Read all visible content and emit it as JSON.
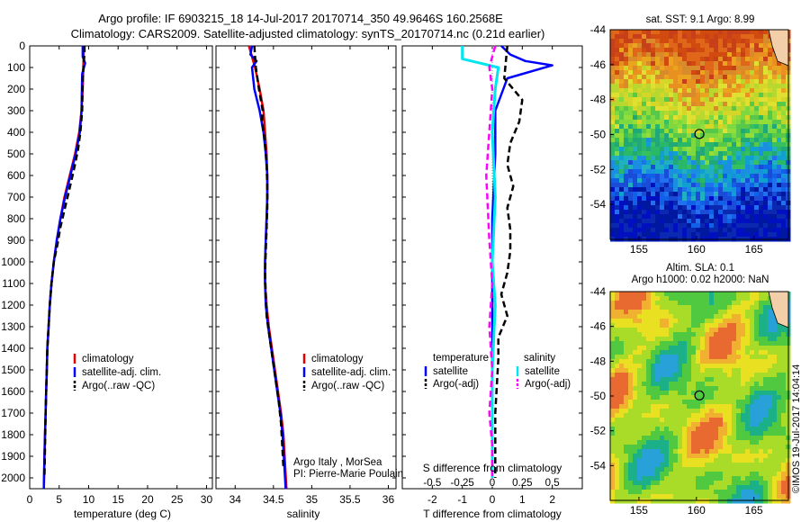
{
  "header": {
    "line1": "Argo profile: IF 6903215_18 14-Jul-2017 20170714_350 49.9646S 160.2568E",
    "line2": "Climatology: CARS2009. Satellite-adjusted climatology: synTS_20170714.nc (0.21d earlier)"
  },
  "colors": {
    "climatology": "#e00000",
    "satellite": "#0000ff",
    "argo": "#000000",
    "salinity_satellite": "#00e5ee",
    "salinity_argo": "#ff00ff"
  },
  "chart_data": [
    {
      "id": "temperature",
      "type": "line",
      "xlabel": "temperature (deg C)",
      "ylim": [
        2050,
        0
      ],
      "xlim": [
        0,
        31
      ],
      "xticks": [
        "0",
        "5",
        "10",
        "15",
        "20",
        "25",
        "30"
      ],
      "yticks": [
        "0",
        "100",
        "200",
        "300",
        "400",
        "500",
        "600",
        "700",
        "800",
        "900",
        "1000",
        "1100",
        "1200",
        "1300",
        "1400",
        "1500",
        "1600",
        "1700",
        "1800",
        "1900",
        "2000"
      ],
      "legend": [
        "climatology",
        "satellite-adj. clim.",
        "Argo(..raw -QC)"
      ],
      "series": [
        {
          "name": "climatology",
          "x": [
            9.2,
            9.1,
            9.0,
            8.8,
            8.4,
            7.7,
            6.8,
            5.9,
            5.2,
            4.6,
            4.1,
            3.7,
            3.4,
            3.2,
            3.0,
            2.9,
            2.8,
            2.7,
            2.6,
            2.5,
            2.4
          ],
          "y": [
            0,
            100,
            200,
            300,
            400,
            500,
            600,
            700,
            800,
            900,
            1000,
            1100,
            1200,
            1300,
            1400,
            1500,
            1600,
            1700,
            1800,
            1900,
            2050
          ]
        },
        {
          "name": "satellite-adj. clim.",
          "x": [
            9.0,
            9.0,
            9.4,
            8.9,
            8.8,
            8.5,
            7.8,
            6.9,
            6.0,
            5.2,
            4.6,
            4.1,
            3.7,
            3.4,
            3.2,
            3.0,
            2.9,
            2.8,
            2.7,
            2.6,
            2.5,
            2.4
          ],
          "y": [
            0,
            50,
            80,
            130,
            300,
            400,
            500,
            600,
            700,
            800,
            900,
            1000,
            1100,
            1200,
            1300,
            1400,
            1500,
            1600,
            1700,
            1800,
            1900,
            2050
          ]
        },
        {
          "name": "Argo(..raw -QC)",
          "x": [
            9.3,
            9.3,
            9.0,
            8.9,
            8.6,
            8.2,
            7.6,
            6.6,
            5.9,
            5.2,
            4.7,
            4.1,
            3.7,
            3.4,
            3.2,
            3.0,
            2.9,
            2.8,
            2.7,
            2.5
          ],
          "y": [
            0,
            30,
            150,
            300,
            400,
            480,
            560,
            680,
            760,
            840,
            920,
            1000,
            1100,
            1200,
            1300,
            1400,
            1500,
            1600,
            1700,
            2000
          ]
        }
      ]
    },
    {
      "id": "salinity",
      "type": "line",
      "xlabel": "salinity",
      "ylim": [
        2050,
        0
      ],
      "xlim": [
        33.75,
        36.1
      ],
      "xticks": [
        "34",
        "34.5",
        "35",
        "35.5",
        "36"
      ],
      "legend": [
        "climatology",
        "satellite-adj. clim.",
        "Argo(..raw -QC)"
      ],
      "annotation": [
        "Argo Italy , MorSea",
        "PI: Pierre-Marie Poulain"
      ],
      "series": [
        {
          "name": "climatology",
          "x": [
            34.18,
            34.26,
            34.32,
            34.37,
            34.39,
            34.41,
            34.42,
            34.42,
            34.41,
            34.4,
            34.39,
            34.39,
            34.41,
            34.44,
            34.48,
            34.52,
            34.56,
            34.6,
            34.63,
            34.67
          ],
          "y": [
            0,
            100,
            200,
            300,
            400,
            500,
            600,
            700,
            800,
            900,
            1000,
            1100,
            1200,
            1300,
            1400,
            1500,
            1600,
            1700,
            1800,
            2050
          ]
        },
        {
          "name": "satellite-adj. clim.",
          "x": [
            34.22,
            34.2,
            34.28,
            34.22,
            34.25,
            34.32,
            34.37,
            34.4,
            34.42,
            34.42,
            34.41,
            34.4,
            34.39,
            34.39,
            34.4,
            34.43,
            34.47,
            34.51,
            34.55,
            34.59,
            34.62,
            34.66
          ],
          "y": [
            0,
            40,
            70,
            100,
            200,
            300,
            400,
            500,
            600,
            700,
            800,
            900,
            1000,
            1100,
            1200,
            1300,
            1400,
            1500,
            1600,
            1700,
            1800,
            2050
          ]
        },
        {
          "name": "Argo(..raw -QC)",
          "x": [
            34.25,
            34.27,
            34.31,
            34.36,
            34.35,
            34.39,
            34.41,
            34.42,
            34.42,
            34.41,
            34.4,
            34.39,
            34.4,
            34.41,
            34.45,
            34.49,
            34.53,
            34.57,
            34.6,
            34.63
          ],
          "y": [
            0,
            100,
            200,
            300,
            350,
            450,
            550,
            650,
            750,
            850,
            950,
            1050,
            1150,
            1250,
            1350,
            1450,
            1550,
            1650,
            1750,
            1950
          ]
        }
      ]
    },
    {
      "id": "difference",
      "type": "line",
      "xlabel": "T difference from climatology",
      "x2label": "S difference from climatology",
      "ylim": [
        2050,
        0
      ],
      "xlim": [
        -3,
        3
      ],
      "xticks": [
        "-2",
        "-1",
        "0",
        "1",
        "2"
      ],
      "x2ticks": [
        "-0.5",
        "-0.25",
        "0",
        "0.25",
        "0.5"
      ],
      "legend_titles": [
        "temperature",
        "salinity"
      ],
      "legend": [
        "satellite",
        "Argo(-adj)",
        "satellite",
        "Argo(-adj)"
      ],
      "series": [
        {
          "name": "satellite",
          "variable": "temperature",
          "x": [
            0.3,
            0.6,
            1.1,
            2.0,
            0.5,
            0.1,
            0.1,
            0.0,
            0.0,
            0.0,
            0.0
          ],
          "y": [
            0,
            40,
            70,
            90,
            150,
            300,
            500,
            800,
            1200,
            1600,
            2000
          ]
        },
        {
          "name": "Argo(-adj)",
          "variable": "temperature",
          "x": [
            0.5,
            0.4,
            1.0,
            0.9,
            0.6,
            0.5,
            0.7,
            0.5,
            0.6,
            0.6,
            0.5,
            0.3,
            0.5,
            0.2,
            0.2,
            0.1,
            0.1
          ],
          "y": [
            0,
            150,
            250,
            350,
            450,
            550,
            650,
            750,
            850,
            950,
            1050,
            1150,
            1250,
            1350,
            1450,
            1700,
            2000
          ]
        },
        {
          "name": "satellite",
          "variable": "salinity",
          "x": [
            -1.0,
            -1.0,
            -0.4,
            0.2,
            0.1,
            0.0,
            0.1,
            0.0,
            0.1,
            0.0,
            0.0,
            0.0
          ],
          "y": [
            0,
            60,
            80,
            100,
            200,
            400,
            700,
            1000,
            1200,
            1500,
            1800,
            2000
          ]
        },
        {
          "name": "Argo(-adj)",
          "variable": "salinity",
          "x": [
            0.1,
            -0.1,
            0.0,
            -0.2,
            -0.1,
            0.0,
            -0.1,
            0.0,
            -0.1,
            0.0,
            0.0
          ],
          "y": [
            0,
            100,
            200,
            600,
            900,
            1100,
            1300,
            1500,
            1700,
            1850,
            2000
          ]
        }
      ]
    },
    {
      "id": "sst_map",
      "type": "heatmap",
      "title": "sat. SST: 9.1 Argo: 8.99",
      "xticks": [
        "155",
        "160",
        "165"
      ],
      "yticks": [
        "-44",
        "-46",
        "-48",
        "-50",
        "-52",
        "-54"
      ],
      "xlim": [
        152.5,
        168
      ],
      "ylim": [
        -56,
        -44
      ],
      "marker": {
        "lon": 160.2568,
        "lat": -49.9646
      }
    },
    {
      "id": "sla_map",
      "type": "heatmap",
      "title": "Altim. SLA: 0.1",
      "subtitle": "Argo h1000: 0.02 h2000: NaN",
      "xticks": [
        "155",
        "160",
        "165"
      ],
      "yticks": [
        "-44",
        "-46",
        "-48",
        "-50",
        "-52",
        "-54"
      ],
      "xlim": [
        152.5,
        168
      ],
      "ylim": [
        -56,
        -44
      ],
      "marker": {
        "lon": 160.2568,
        "lat": -49.9646
      }
    }
  ],
  "footer": {
    "watermark": "©IMOS 19-Jul-2017 14:04:14"
  }
}
